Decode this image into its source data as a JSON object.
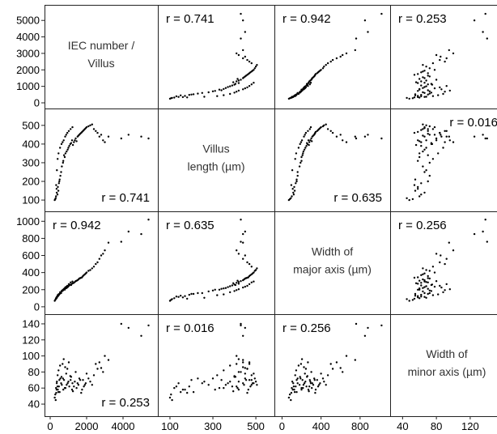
{
  "chart_data": {
    "type": "scatter",
    "variables": [
      {
        "label_lines": [
          "IEC number /",
          "Villus"
        ],
        "range": [
          0,
          5600
        ],
        "ticks": [
          0,
          1000,
          2000,
          3000,
          4000,
          5000
        ]
      },
      {
        "label_lines": [
          "Villus",
          "length (µm)"
        ],
        "range": [
          70,
          560
        ],
        "ticks": [
          100,
          200,
          300,
          400,
          500
        ]
      },
      {
        "label_lines": [
          "Width of",
          "major axis (µm)"
        ],
        "range": [
          -20,
          1050
        ],
        "ticks": [
          0,
          200,
          400,
          600,
          800,
          1000
        ]
      },
      {
        "label_lines": [
          "Width of",
          "minor axis (µm)"
        ],
        "range": [
          32,
          145
        ],
        "ticks": [
          40,
          60,
          80,
          100,
          120,
          140
        ]
      }
    ],
    "y_tick_labels": [
      [
        "0",
        "1000",
        "2000",
        "3000",
        "4000",
        "5000"
      ],
      [
        "100",
        "200",
        "300",
        "400",
        "500"
      ],
      [
        "0",
        "200",
        "400",
        "600",
        "800",
        "1000"
      ],
      [
        "40",
        "60",
        "80",
        "100",
        "120",
        "140"
      ]
    ],
    "x_tick_labels": [
      [
        "0",
        "2000",
        "4000"
      ],
      [
        "100",
        "300",
        "500"
      ],
      [
        "0",
        "400",
        "800"
      ],
      [
        "40",
        "80",
        "120"
      ]
    ],
    "x_ticks": [
      [
        0,
        2000,
        4000
      ],
      [
        100,
        300,
        500
      ],
      [
        0,
        400,
        800
      ],
      [
        40,
        80,
        120
      ]
    ],
    "correlations": [
      {
        "i": 0,
        "j": 1,
        "text": "r = 0.741"
      },
      {
        "i": 0,
        "j": 2,
        "text": "r = 0.942"
      },
      {
        "i": 0,
        "j": 3,
        "text": "r = 0.253"
      },
      {
        "i": 1,
        "j": 0,
        "text": "r = 0.741"
      },
      {
        "i": 1,
        "j": 2,
        "text": "r = 0.635"
      },
      {
        "i": 1,
        "j": 3,
        "text": "r = 0.016"
      },
      {
        "i": 2,
        "j": 0,
        "text": "r = 0.942"
      },
      {
        "i": 2,
        "j": 1,
        "text": "r = 0.635"
      },
      {
        "i": 2,
        "j": 3,
        "text": "r = 0.256"
      },
      {
        "i": 3,
        "j": 0,
        "text": "r = 0.253"
      },
      {
        "i": 3,
        "j": 1,
        "text": "r = 0.016"
      },
      {
        "i": 3,
        "j": 2,
        "text": "r = 0.256"
      }
    ],
    "points": [
      [
        300,
        110,
        90,
        45
      ],
      [
        400,
        130,
        120,
        62
      ],
      [
        350,
        160,
        110,
        58
      ],
      [
        500,
        200,
        150,
        70
      ],
      [
        450,
        150,
        130,
        55
      ],
      [
        600,
        250,
        160,
        66
      ],
      [
        700,
        300,
        190,
        72
      ],
      [
        800,
        330,
        200,
        60
      ],
      [
        900,
        360,
        220,
        64
      ],
      [
        1000,
        380,
        240,
        68
      ],
      [
        1100,
        400,
        260,
        75
      ],
      [
        1200,
        420,
        270,
        58
      ],
      [
        1300,
        410,
        280,
        62
      ],
      [
        1400,
        430,
        300,
        80
      ],
      [
        1500,
        440,
        310,
        66
      ],
      [
        1600,
        450,
        330,
        72
      ],
      [
        1700,
        460,
        340,
        54
      ],
      [
        1800,
        470,
        360,
        70
      ],
      [
        1900,
        480,
        380,
        64
      ],
      [
        2000,
        490,
        400,
        78
      ],
      [
        2200,
        500,
        430,
        68
      ],
      [
        2500,
        470,
        500,
        90
      ],
      [
        2800,
        450,
        600,
        85
      ],
      [
        3200,
        440,
        750,
        95
      ],
      [
        5400,
        430,
        1020,
        138
      ],
      [
        5000,
        440,
        850,
        125
      ],
      [
        4300,
        450,
        880,
        135
      ],
      [
        3900,
        430,
        760,
        140
      ],
      [
        250,
        100,
        70,
        48
      ],
      [
        280,
        105,
        80,
        52
      ],
      [
        320,
        120,
        100,
        60
      ],
      [
        360,
        140,
        115,
        66
      ],
      [
        420,
        170,
        125,
        58
      ],
      [
        480,
        190,
        140,
        62
      ],
      [
        520,
        210,
        150,
        55
      ],
      [
        560,
        230,
        160,
        72
      ],
      [
        640,
        280,
        180,
        64
      ],
      [
        720,
        310,
        200,
        58
      ],
      [
        760,
        340,
        210,
        70
      ],
      [
        840,
        350,
        215,
        60
      ],
      [
        960,
        370,
        230,
        66
      ],
      [
        1050,
        390,
        250,
        62
      ],
      [
        1150,
        405,
        255,
        74
      ],
      [
        1250,
        395,
        275,
        56
      ],
      [
        1350,
        420,
        290,
        68
      ],
      [
        1450,
        415,
        305,
        60
      ],
      [
        1550,
        445,
        320,
        64
      ],
      [
        1650,
        455,
        335,
        70
      ],
      [
        1750,
        465,
        345,
        58
      ],
      [
        1850,
        475,
        370,
        62
      ],
      [
        1950,
        485,
        390,
        66
      ],
      [
        2100,
        495,
        420,
        72
      ],
      [
        2300,
        505,
        450,
        64
      ],
      [
        2400,
        480,
        470,
        76
      ],
      [
        2600,
        460,
        520,
        84
      ],
      [
        2700,
        440,
        560,
        92
      ],
      [
        2900,
        420,
        620,
        80
      ],
      [
        3000,
        410,
        660,
        100
      ],
      [
        330,
        180,
        95,
        54
      ],
      [
        370,
        260,
        105,
        68
      ],
      [
        410,
        320,
        135,
        76
      ],
      [
        460,
        350,
        145,
        82
      ],
      [
        540,
        380,
        170,
        88
      ],
      [
        620,
        400,
        185,
        74
      ],
      [
        680,
        410,
        195,
        90
      ],
      [
        740,
        420,
        205,
        96
      ],
      [
        820,
        440,
        225,
        86
      ],
      [
        880,
        450,
        235,
        78
      ],
      [
        940,
        460,
        245,
        84
      ],
      [
        1020,
        470,
        265,
        92
      ],
      [
        1120,
        480,
        285,
        70
      ],
      [
        1220,
        490,
        295,
        66
      ]
    ]
  }
}
